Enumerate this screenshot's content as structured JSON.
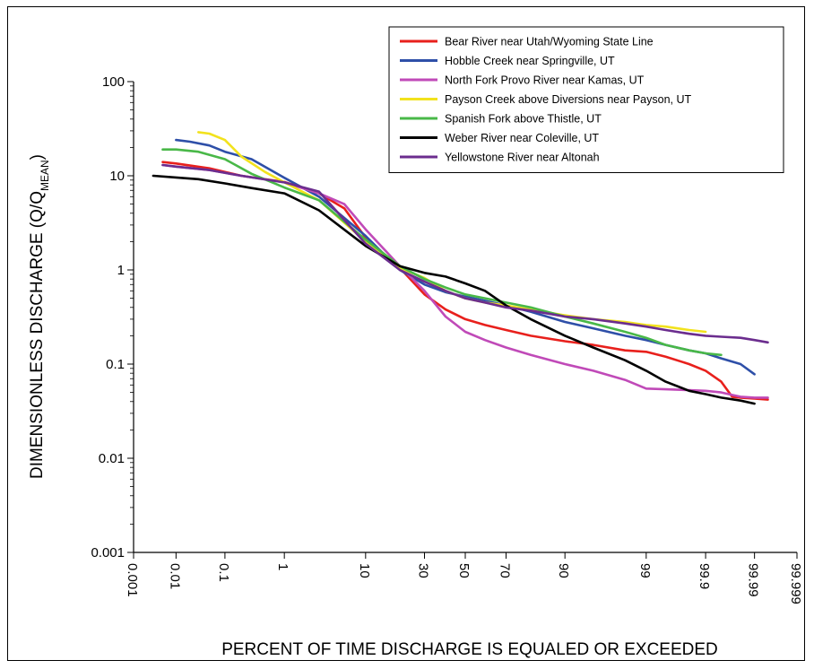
{
  "chart_data": {
    "type": "line",
    "xlabel": "PERCENT OF TIME DISCHARGE IS EQUALED OR EXCEEDED",
    "ylabel": {
      "prefix": "DIMENSIONLESS DISCHARGE (Q/Q",
      "subscript": "MEAN",
      "suffix": ")"
    },
    "x_scale": "probability",
    "y_scale": "log",
    "ylim": [
      0.001,
      100
    ],
    "x_ticks": [
      {
        "value": 0.001,
        "label": "0.001"
      },
      {
        "value": 0.01,
        "label": "0.01"
      },
      {
        "value": 0.1,
        "label": "0.1"
      },
      {
        "value": 1,
        "label": "1"
      },
      {
        "value": 10,
        "label": "10"
      },
      {
        "value": 30,
        "label": "30"
      },
      {
        "value": 50,
        "label": "50"
      },
      {
        "value": 70,
        "label": "70"
      },
      {
        "value": 90,
        "label": "90"
      },
      {
        "value": 99,
        "label": "99"
      },
      {
        "value": 99.9,
        "label": "99.9"
      },
      {
        "value": 99.99,
        "label": "99.99"
      },
      {
        "value": 99.999,
        "label": "99.999"
      }
    ],
    "y_ticks": [
      {
        "value": 0.001,
        "label": "0.001"
      },
      {
        "value": 0.01,
        "label": "0.01"
      },
      {
        "value": 0.1,
        "label": "0.1"
      },
      {
        "value": 1,
        "label": "1"
      },
      {
        "value": 10,
        "label": "10"
      },
      {
        "value": 100,
        "label": "100"
      }
    ],
    "legend_position": "top-right",
    "series": [
      {
        "name": "Bear River near Utah/Wyoming State Line",
        "color": "#e8201c",
        "x": [
          0.005,
          0.01,
          0.05,
          0.2,
          1,
          3,
          6,
          10,
          20,
          30,
          40,
          50,
          60,
          70,
          80,
          90,
          95,
          98,
          99,
          99.5,
          99.8,
          99.9,
          99.95,
          99.97,
          99.98,
          99.99,
          99.995
        ],
        "y": [
          14,
          13.5,
          12,
          10,
          8.6,
          6.5,
          4.5,
          2.2,
          1.05,
          0.55,
          0.38,
          0.3,
          0.26,
          0.23,
          0.2,
          0.175,
          0.16,
          0.14,
          0.135,
          0.12,
          0.1,
          0.085,
          0.065,
          0.045,
          0.044,
          0.043,
          0.042
        ]
      },
      {
        "name": "Hobble Creek near Springville, UT",
        "color": "#2e4fa8",
        "x": [
          0.01,
          0.02,
          0.05,
          0.1,
          0.3,
          1,
          3,
          10,
          20,
          30,
          40,
          50,
          60,
          70,
          80,
          90,
          95,
          98,
          99,
          99.5,
          99.8,
          99.9,
          99.95,
          99.98,
          99.99
        ],
        "y": [
          24,
          23,
          21,
          18,
          15,
          9.5,
          6,
          2.3,
          1.0,
          0.7,
          0.58,
          0.52,
          0.47,
          0.42,
          0.36,
          0.28,
          0.24,
          0.2,
          0.18,
          0.16,
          0.14,
          0.13,
          0.115,
          0.1,
          0.078
        ]
      },
      {
        "name": "North Fork Provo River near Kamas, UT",
        "color": "#c04ab8",
        "x": [
          0.005,
          0.01,
          0.05,
          0.2,
          1,
          3,
          6,
          10,
          20,
          30,
          40,
          50,
          60,
          70,
          80,
          90,
          95,
          98,
          99,
          99.5,
          99.8,
          99.9,
          99.95,
          99.97,
          99.98,
          99.99,
          99.995
        ],
        "y": [
          13,
          12.5,
          11.5,
          10,
          8.5,
          6.5,
          5,
          2.7,
          1.1,
          0.6,
          0.32,
          0.22,
          0.18,
          0.15,
          0.125,
          0.1,
          0.085,
          0.068,
          0.055,
          0.054,
          0.053,
          0.052,
          0.05,
          0.047,
          0.045,
          0.044,
          0.044
        ]
      },
      {
        "name": "Payson Creek above Diversions near Payson, UT",
        "color": "#f2e21d",
        "x": [
          0.03,
          0.05,
          0.1,
          0.2,
          0.5,
          1,
          3,
          10,
          20,
          30,
          40,
          50,
          60,
          70,
          80,
          90,
          95,
          98,
          99,
          99.5,
          99.8,
          99.9
        ],
        "y": [
          29,
          28,
          24,
          16,
          11,
          8.5,
          5.5,
          2.0,
          1.05,
          0.82,
          0.6,
          0.5,
          0.45,
          0.42,
          0.38,
          0.33,
          0.3,
          0.28,
          0.26,
          0.25,
          0.23,
          0.22
        ]
      },
      {
        "name": "Spanish Fork above Thistle, UT",
        "color": "#49b848",
        "x": [
          0.005,
          0.01,
          0.03,
          0.1,
          0.3,
          1,
          3,
          10,
          20,
          30,
          40,
          50,
          60,
          70,
          80,
          90,
          95,
          98,
          99,
          99.5,
          99.8,
          99.9,
          99.95
        ],
        "y": [
          19,
          19,
          18,
          15,
          10.5,
          7.5,
          5.5,
          2.1,
          1.1,
          0.8,
          0.65,
          0.55,
          0.5,
          0.45,
          0.4,
          0.32,
          0.27,
          0.22,
          0.19,
          0.16,
          0.14,
          0.13,
          0.125
        ]
      },
      {
        "name": "Weber River near Coleville, UT",
        "color": "#000000",
        "x": [
          0.003,
          0.01,
          0.03,
          0.1,
          0.3,
          1,
          3,
          10,
          20,
          30,
          40,
          50,
          60,
          70,
          80,
          90,
          95,
          98,
          99,
          99.5,
          99.8,
          99.9,
          99.95,
          99.98,
          99.99
        ],
        "y": [
          10,
          9.6,
          9.2,
          8.3,
          7.4,
          6.5,
          4.3,
          1.8,
          1.1,
          0.93,
          0.85,
          0.72,
          0.6,
          0.42,
          0.3,
          0.2,
          0.15,
          0.11,
          0.085,
          0.065,
          0.052,
          0.048,
          0.044,
          0.041,
          0.038
        ]
      },
      {
        "name": "Yellowstone River near Altonah",
        "color": "#6b2d8e",
        "x": [
          0.005,
          0.01,
          0.05,
          0.2,
          1,
          3,
          10,
          20,
          30,
          40,
          50,
          60,
          70,
          80,
          90,
          95,
          98,
          99,
          99.5,
          99.8,
          99.9,
          99.95,
          99.98,
          99.99,
          99.995
        ],
        "y": [
          13,
          12.5,
          11.5,
          10,
          8.5,
          6.8,
          1.9,
          1.0,
          0.75,
          0.6,
          0.5,
          0.45,
          0.4,
          0.37,
          0.32,
          0.3,
          0.27,
          0.25,
          0.23,
          0.21,
          0.2,
          0.195,
          0.19,
          0.18,
          0.17
        ]
      }
    ]
  }
}
